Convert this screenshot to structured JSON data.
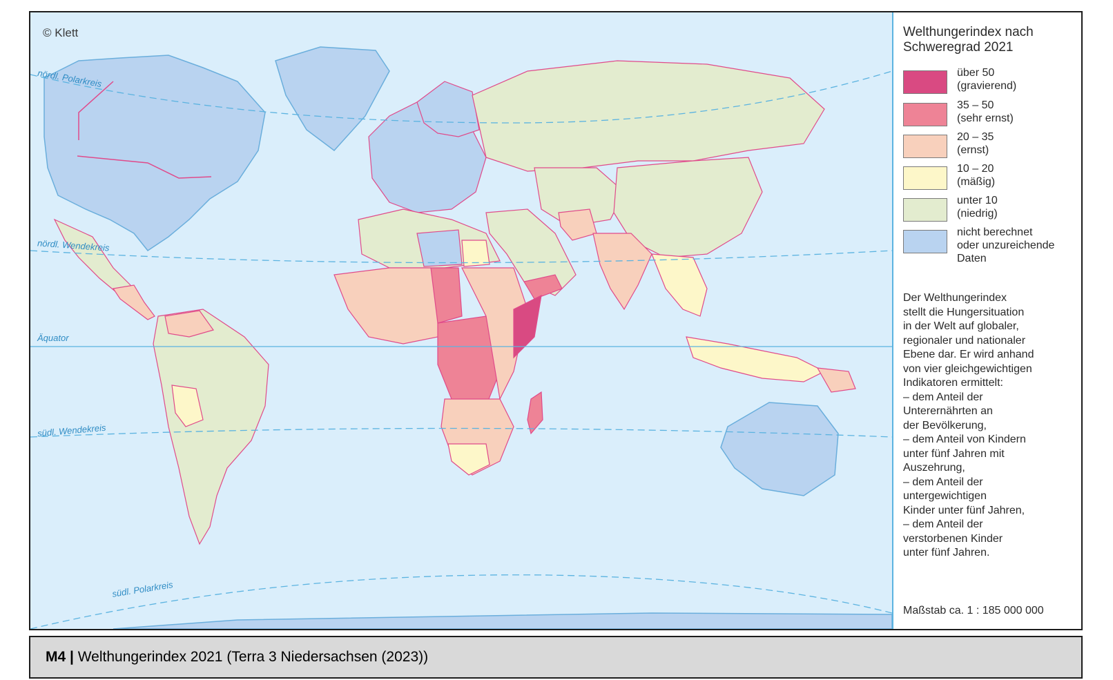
{
  "map": {
    "copyright": "© Klett",
    "lines": {
      "north_polar": "nördl. Polarkreis",
      "north_tropic": "nördl. Wendekreis",
      "equator": "Äquator",
      "south_tropic": "südl. Wendekreis",
      "south_polar": "südl. Polarkreis"
    }
  },
  "legend": {
    "title": "Welthungerindex nach Schweregrad 2021",
    "items": [
      {
        "range": "über 50",
        "label": "(gravierend)",
        "color": "#d94a82"
      },
      {
        "range": "35 – 50",
        "label": "(sehr ernst)",
        "color": "#ee8396"
      },
      {
        "range": "20 – 35",
        "label": "(ernst)",
        "color": "#f8d0bc"
      },
      {
        "range": "10 – 20",
        "label": "(mäßig)",
        "color": "#fdf7c9"
      },
      {
        "range": "unter 10",
        "label": "(niedrig)",
        "color": "#e3eccf"
      },
      {
        "range": "nicht berechnet",
        "label": "oder unzureichende Daten",
        "color": "#b9d3f0"
      }
    ],
    "description": "Der Welthungerindex\nstellt die Hungersituation\nin der Welt auf globaler,\nregionaler und nationaler\nEbene dar. Er wird anhand\nvon vier gleichgewichtigen\nIndikatoren ermittelt:\n– dem Anteil der\n   Unterernährten an\n   der Bevölkerung,\n– dem Anteil von Kindern\n   unter fünf Jahren mit\n   Auszehrung,\n– dem Anteil der\n   untergewichtigen\n   Kinder unter fünf Jahren,\n– dem Anteil der\n   verstorbenen Kinder\n   unter fünf Jahren.",
    "scale": "Maßstab ca. 1 : 185 000 000"
  },
  "caption": {
    "label": "M4 |",
    "text": " Welthungerindex 2021 (Terra 3 Niedersachsen (2023))"
  }
}
